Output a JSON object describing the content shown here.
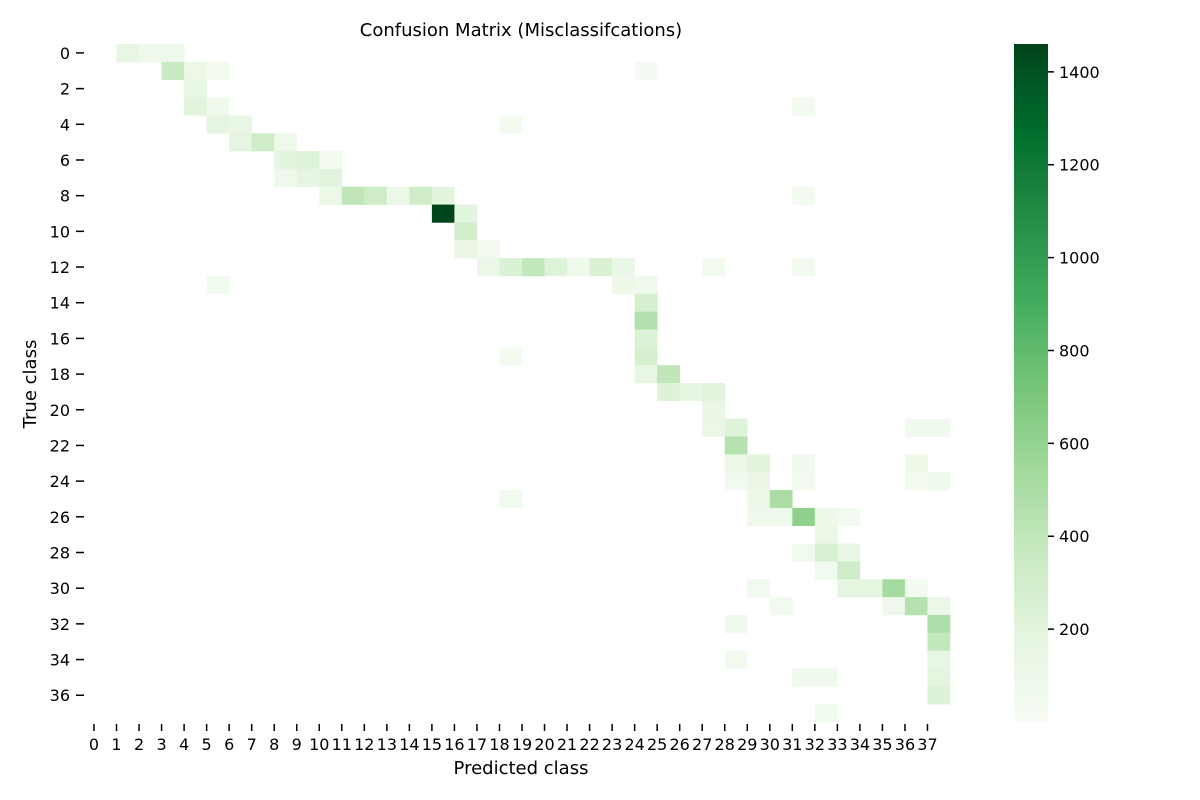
{
  "chart_data": {
    "type": "heatmap",
    "title": "Confusion Matrix (Misclassifcations)",
    "xlabel": "Predicted class",
    "ylabel": "True class",
    "n_classes": 38,
    "x_tick_labels": [
      "0",
      "1",
      "2",
      "3",
      "4",
      "5",
      "6",
      "7",
      "8",
      "9",
      "10",
      "11",
      "12",
      "13",
      "14",
      "15",
      "16",
      "17",
      "18",
      "19",
      "20",
      "21",
      "22",
      "23",
      "24",
      "25",
      "26",
      "27",
      "28",
      "29",
      "30",
      "31",
      "32",
      "33",
      "34",
      "35",
      "36",
      "37"
    ],
    "y_tick_labels": [
      "0",
      "2",
      "4",
      "6",
      "8",
      "10",
      "12",
      "14",
      "16",
      "18",
      "20",
      "22",
      "24",
      "26",
      "28",
      "30",
      "32",
      "34",
      "36"
    ],
    "colorbar": {
      "min": 0,
      "max": 1460,
      "ticks": [
        200,
        400,
        600,
        800,
        1000,
        1200,
        1400
      ],
      "tick_labels": [
        "200",
        "400",
        "600",
        "800",
        "1000",
        "1200",
        "1400"
      ],
      "colormap": "Greens",
      "color_stops": [
        "#f7fcf5",
        "#e5f5e0",
        "#c7e9c0",
        "#a1d99b",
        "#74c476",
        "#41ab5d",
        "#238b45",
        "#006d2c",
        "#00441b"
      ]
    },
    "grid": false,
    "empty_cells": "blank",
    "cells": [
      [
        0,
        1,
        150
      ],
      [
        0,
        2,
        90
      ],
      [
        0,
        3,
        90
      ],
      [
        1,
        3,
        350
      ],
      [
        1,
        4,
        120
      ],
      [
        1,
        5,
        40
      ],
      [
        1,
        24,
        30
      ],
      [
        2,
        4,
        150
      ],
      [
        3,
        4,
        200
      ],
      [
        3,
        5,
        80
      ],
      [
        3,
        31,
        40
      ],
      [
        4,
        5,
        170
      ],
      [
        4,
        6,
        150
      ],
      [
        4,
        18,
        40
      ],
      [
        5,
        6,
        170
      ],
      [
        5,
        7,
        320
      ],
      [
        5,
        8,
        90
      ],
      [
        6,
        8,
        190
      ],
      [
        6,
        9,
        220
      ],
      [
        6,
        10,
        50
      ],
      [
        7,
        8,
        90
      ],
      [
        7,
        9,
        160
      ],
      [
        7,
        10,
        200
      ],
      [
        8,
        10,
        120
      ],
      [
        8,
        11,
        400
      ],
      [
        8,
        12,
        320
      ],
      [
        8,
        13,
        120
      ],
      [
        8,
        14,
        320
      ],
      [
        8,
        15,
        190
      ],
      [
        8,
        31,
        40
      ],
      [
        9,
        15,
        1460
      ],
      [
        9,
        16,
        190
      ],
      [
        10,
        16,
        290
      ],
      [
        11,
        16,
        130
      ],
      [
        11,
        17,
        50
      ],
      [
        12,
        17,
        120
      ],
      [
        12,
        18,
        250
      ],
      [
        12,
        19,
        380
      ],
      [
        12,
        20,
        220
      ],
      [
        12,
        21,
        80
      ],
      [
        12,
        22,
        250
      ],
      [
        12,
        23,
        130
      ],
      [
        12,
        27,
        50
      ],
      [
        12,
        31,
        40
      ],
      [
        13,
        5,
        60
      ],
      [
        13,
        23,
        100
      ],
      [
        13,
        24,
        80
      ],
      [
        14,
        24,
        280
      ],
      [
        15,
        24,
        460
      ],
      [
        16,
        24,
        240
      ],
      [
        17,
        18,
        40
      ],
      [
        17,
        24,
        280
      ],
      [
        18,
        24,
        150
      ],
      [
        18,
        25,
        400
      ],
      [
        19,
        25,
        230
      ],
      [
        19,
        26,
        160
      ],
      [
        19,
        27,
        200
      ],
      [
        20,
        27,
        130
      ],
      [
        21,
        27,
        120
      ],
      [
        21,
        28,
        220
      ],
      [
        21,
        36,
        70
      ],
      [
        21,
        37,
        70
      ],
      [
        22,
        28,
        450
      ],
      [
        23,
        28,
        110
      ],
      [
        23,
        29,
        200
      ],
      [
        23,
        31,
        70
      ],
      [
        23,
        36,
        100
      ],
      [
        24,
        28,
        60
      ],
      [
        24,
        29,
        130
      ],
      [
        24,
        31,
        50
      ],
      [
        24,
        36,
        50
      ],
      [
        24,
        37,
        80
      ],
      [
        25,
        18,
        60
      ],
      [
        25,
        29,
        100
      ],
      [
        25,
        30,
        500
      ],
      [
        26,
        29,
        90
      ],
      [
        26,
        30,
        90
      ],
      [
        26,
        31,
        620
      ],
      [
        26,
        32,
        110
      ],
      [
        26,
        33,
        60
      ],
      [
        27,
        32,
        120
      ],
      [
        28,
        31,
        60
      ],
      [
        28,
        32,
        260
      ],
      [
        28,
        33,
        150
      ],
      [
        29,
        32,
        60
      ],
      [
        29,
        33,
        320
      ],
      [
        30,
        29,
        60
      ],
      [
        30,
        33,
        180
      ],
      [
        30,
        34,
        180
      ],
      [
        30,
        35,
        530
      ],
      [
        30,
        36,
        40
      ],
      [
        31,
        30,
        60
      ],
      [
        31,
        35,
        90
      ],
      [
        31,
        36,
        450
      ],
      [
        31,
        37,
        120
      ],
      [
        32,
        28,
        70
      ],
      [
        32,
        37,
        480
      ],
      [
        33,
        37,
        380
      ],
      [
        34,
        28,
        50
      ],
      [
        34,
        37,
        150
      ],
      [
        35,
        31,
        80
      ],
      [
        35,
        32,
        80
      ],
      [
        35,
        37,
        180
      ],
      [
        36,
        37,
        230
      ],
      [
        37,
        32,
        60
      ]
    ]
  }
}
